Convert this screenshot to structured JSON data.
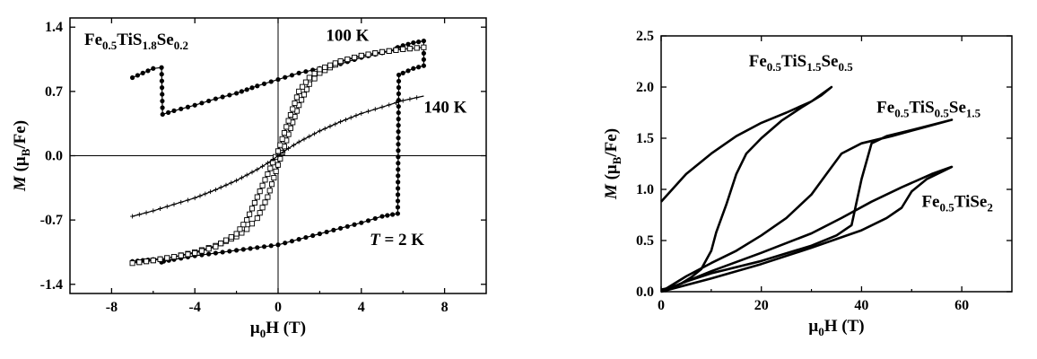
{
  "chart_data": [
    {
      "type": "line",
      "panel": "left",
      "xlim": [
        -10,
        10
      ],
      "ylim": [
        -1.5,
        1.5
      ],
      "xticks": [
        -8,
        -4,
        0,
        4,
        8
      ],
      "xtick_labels": [
        "-8",
        "-4",
        "0",
        "4",
        "8"
      ],
      "yticks": [
        -1.4,
        -0.7,
        0.0,
        0.7,
        1.4
      ],
      "ytick_labels": [
        "-1.4",
        "-0.7",
        "0.0",
        "0.7",
        "1.4"
      ],
      "zero_lines": true,
      "xlabel": {
        "pre": "μ",
        "sub": "0",
        "post": "H (T)"
      },
      "ylabel": {
        "italic": "M",
        "pre": " (μ",
        "sub": "B",
        "post": "/Fe)"
      },
      "title_annotation": {
        "parts": [
          {
            "t": "Fe"
          },
          {
            "t": "0.5",
            "sub": true
          },
          {
            "t": "TiS"
          },
          {
            "t": "1.8",
            "sub": true
          },
          {
            "t": "Se"
          },
          {
            "t": "0.2",
            "sub": true
          }
        ]
      },
      "annotations": [
        {
          "text": "100 K",
          "x": 2.3,
          "y": 1.25
        },
        {
          "text": "140 K",
          "x": 7.0,
          "y": 0.47
        },
        {
          "text": "T = 2 K",
          "x": 4.4,
          "y": -0.97
        }
      ],
      "series": [
        {
          "name": "2 K",
          "marker": "filled-circle",
          "x": [
            -7.0,
            -6.5,
            -6.0,
            -5.6,
            -5.55,
            -5.0,
            -4.0,
            -3.0,
            -2.0,
            -1.0,
            0.0,
            1.0,
            2.0,
            3.0,
            4.0,
            5.0,
            5.6,
            5.65,
            5.7,
            5.75,
            6.0,
            6.5,
            7.0,
            7.0,
            6.5,
            6.0,
            5.8,
            5.75,
            5.0,
            4.0,
            3.0,
            2.0,
            1.0,
            0.0,
            -1.0,
            -2.0,
            -3.0,
            -4.0,
            -5.0,
            -5.5,
            -5.6,
            -5.65,
            -6.0,
            -6.5,
            -7.0
          ],
          "y": [
            0.85,
            0.9,
            0.95,
            0.96,
            0.45,
            0.49,
            0.55,
            0.62,
            0.68,
            0.76,
            0.83,
            0.9,
            0.95,
            1.0,
            1.07,
            1.12,
            1.15,
            1.16,
            1.17,
            1.18,
            1.2,
            1.23,
            1.25,
            0.98,
            0.95,
            0.9,
            0.88,
            -0.63,
            -0.66,
            -0.73,
            -0.79,
            -0.85,
            -0.91,
            -0.97,
            -1.0,
            -1.03,
            -1.06,
            -1.09,
            -1.13,
            -1.15,
            -1.16,
            -1.12,
            -1.13,
            -1.14,
            -1.15
          ]
        },
        {
          "name": "100 K",
          "marker": "open-square",
          "x": [
            -7.0,
            -6.0,
            -5.0,
            -4.0,
            -3.0,
            -2.0,
            -1.5,
            -1.0,
            -0.5,
            0.0,
            0.3,
            0.6,
            1.0,
            1.5,
            2.0,
            3.0,
            4.0,
            5.0,
            6.0,
            7.0,
            6.0,
            5.0,
            4.0,
            3.0,
            2.0,
            1.5,
            1.0,
            0.5,
            0.0,
            -0.5,
            -1.0,
            -1.5,
            -2.0,
            -3.0,
            -4.0,
            -5.0,
            -6.0,
            -7.0
          ],
          "y": [
            -1.17,
            -1.14,
            -1.1,
            -1.05,
            -0.98,
            -0.88,
            -0.8,
            -0.68,
            -0.45,
            -0.1,
            0.1,
            0.3,
            0.55,
            0.78,
            0.9,
            1.02,
            1.09,
            1.13,
            1.16,
            1.18,
            1.16,
            1.13,
            1.09,
            1.03,
            0.94,
            0.85,
            0.7,
            0.38,
            0.05,
            -0.2,
            -0.45,
            -0.7,
            -0.85,
            -0.99,
            -1.06,
            -1.1,
            -1.14,
            -1.17
          ]
        },
        {
          "name": "140 K",
          "marker": "cross",
          "x": [
            -7.0,
            -6.0,
            -5.0,
            -4.0,
            -3.0,
            -2.0,
            -1.0,
            -0.5,
            0.0,
            0.5,
            1.0,
            2.0,
            3.0,
            4.0,
            5.0,
            6.0,
            7.0
          ],
          "y": [
            -0.66,
            -0.6,
            -0.53,
            -0.46,
            -0.37,
            -0.27,
            -0.15,
            -0.08,
            0.0,
            0.08,
            0.15,
            0.27,
            0.37,
            0.46,
            0.53,
            0.6,
            0.65
          ]
        }
      ]
    },
    {
      "type": "line",
      "panel": "right",
      "xlim": [
        0,
        70
      ],
      "ylim": [
        0,
        2.5
      ],
      "xticks": [
        0,
        20,
        40,
        60
      ],
      "xtick_labels": [
        "0",
        "20",
        "40",
        "60"
      ],
      "yticks": [
        0.0,
        0.5,
        1.0,
        1.5,
        2.0,
        2.5
      ],
      "ytick_labels": [
        "0.0",
        "0.5",
        "1.0",
        "1.5",
        "2.0",
        "2.5"
      ],
      "xlabel": {
        "pre": "μ",
        "sub": "0",
        "post": "H (T)"
      },
      "ylabel": {
        "italic": "M",
        "pre": " (μ",
        "sub": "B",
        "post": "/Fe)"
      },
      "annotations": [
        {
          "x": 17.5,
          "y": 2.2,
          "parts": [
            {
              "t": "Fe"
            },
            {
              "t": "0.5",
              "sub": true
            },
            {
              "t": "TiS"
            },
            {
              "t": "1.5",
              "sub": true
            },
            {
              "t": "Se"
            },
            {
              "t": "0.5",
              "sub": true
            }
          ]
        },
        {
          "x": 43,
          "y": 1.75,
          "parts": [
            {
              "t": "Fe"
            },
            {
              "t": "0.5",
              "sub": true
            },
            {
              "t": "TiS"
            },
            {
              "t": "0.5",
              "sub": true
            },
            {
              "t": "Se"
            },
            {
              "t": "1.5",
              "sub": true
            }
          ]
        },
        {
          "x": 52,
          "y": 0.83,
          "parts": [
            {
              "t": "Fe"
            },
            {
              "t": "0.5",
              "sub": true
            },
            {
              "t": "TiSe"
            },
            {
              "t": "2",
              "sub": true
            }
          ]
        }
      ],
      "series": [
        {
          "name": "Fe0.5TiS1.5Se0.5",
          "x": [
            0,
            5,
            10,
            15,
            20,
            25,
            30,
            34,
            32,
            28,
            24,
            20,
            17,
            15,
            13,
            11,
            10,
            8,
            6,
            4,
            2,
            0
          ],
          "y": [
            0.88,
            1.15,
            1.35,
            1.52,
            1.65,
            1.75,
            1.86,
            2.0,
            1.92,
            1.8,
            1.67,
            1.5,
            1.35,
            1.15,
            0.85,
            0.58,
            0.4,
            0.22,
            0.14,
            0.08,
            0.04,
            0.02
          ]
        },
        {
          "name": "Fe0.5TiS0.5Se1.5",
          "x": [
            0,
            5,
            10,
            20,
            30,
            35,
            38,
            40,
            42,
            45,
            50,
            58,
            52,
            46,
            40,
            36,
            33,
            30,
            25,
            20,
            15,
            10,
            5,
            0
          ],
          "y": [
            0.0,
            0.1,
            0.18,
            0.3,
            0.45,
            0.55,
            0.65,
            1.1,
            1.45,
            1.52,
            1.58,
            1.68,
            1.6,
            1.52,
            1.45,
            1.35,
            1.15,
            0.95,
            0.72,
            0.55,
            0.4,
            0.28,
            0.15,
            0.0
          ]
        },
        {
          "name": "Fe0.5TiSe2",
          "x": [
            0,
            10,
            20,
            30,
            40,
            45,
            48,
            50,
            53,
            58,
            54,
            48,
            42,
            36,
            30,
            20,
            10,
            0
          ],
          "y": [
            0.0,
            0.13,
            0.27,
            0.43,
            0.6,
            0.72,
            0.82,
            0.98,
            1.1,
            1.22,
            1.15,
            1.02,
            0.88,
            0.72,
            0.57,
            0.38,
            0.2,
            0.0
          ]
        }
      ]
    }
  ]
}
